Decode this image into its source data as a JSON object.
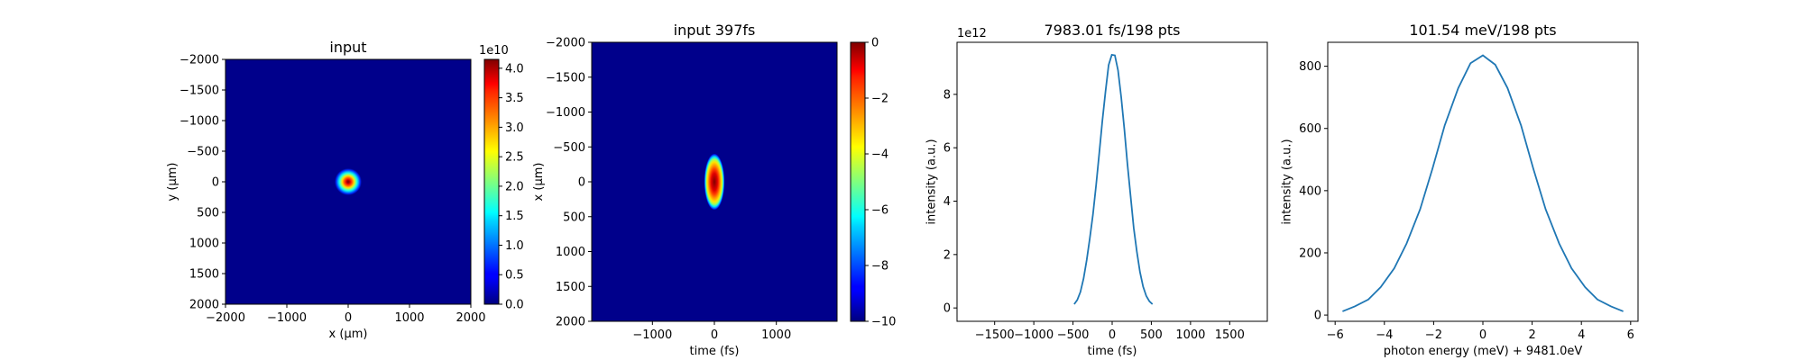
{
  "chart_data": [
    {
      "type": "heatmap",
      "title": "input",
      "xlabel": "x (μm)",
      "ylabel": "y (μm)",
      "xlim": [
        -2000,
        2000
      ],
      "ylim": [
        2000,
        -2000
      ],
      "xticks": [
        "−2000",
        "−1000",
        "0",
        "1000",
        "2000"
      ],
      "yticks": [
        "−2000",
        "−1500",
        "−1000",
        "−500",
        "0",
        "500",
        "1000",
        "1500",
        "2000"
      ],
      "beam": {
        "center": [
          0,
          0
        ],
        "sigma": [
          230,
          230
        ]
      },
      "colorbar": {
        "colormap": "jet",
        "range": [
          0,
          4.15
        ],
        "ticks": [
          "0.0",
          "0.5",
          "1.0",
          "1.5",
          "2.0",
          "2.5",
          "3.0",
          "3.5",
          "4.0"
        ],
        "exponent_label": "1e10"
      }
    },
    {
      "type": "heatmap",
      "title": "input 397fs",
      "xlabel": "time (fs)",
      "ylabel": "x (μm)",
      "xlim": [
        -1980,
        1980
      ],
      "ylim": [
        2000,
        -2000
      ],
      "xticks": [
        "−1000",
        "0",
        "1000"
      ],
      "yticks": [
        "−2000",
        "−1500",
        "−1000",
        "−500",
        "0",
        "500",
        "1000",
        "1500",
        "2000"
      ],
      "beam": {
        "center": [
          0,
          0
        ],
        "sigma": [
          165,
          405
        ]
      },
      "colorbar": {
        "colormap": "jet",
        "range": [
          -10,
          0
        ],
        "ticks": [
          "0",
          "−2",
          "−4",
          "−6",
          "−8",
          "−10"
        ]
      }
    },
    {
      "type": "line",
      "title": "7983.01 fs/198 pts",
      "xlabel": "time (fs)",
      "ylabel": "intensity (a.u.)",
      "exponent_label": "1e12",
      "xlim": [
        -1980,
        1980
      ],
      "ylim": [
        -0.5,
        9.95
      ],
      "xticks": [
        -1500,
        -1000,
        -500,
        0,
        500,
        1000,
        1500
      ],
      "xtick_labels": [
        "−1500",
        "−1000",
        "−500",
        "0",
        "500",
        "1000",
        "1500"
      ],
      "yticks": [
        0,
        2,
        4,
        6,
        8
      ],
      "ytick_labels": [
        "0",
        "2",
        "4",
        "6",
        "8"
      ],
      "series": [
        {
          "color": "#1f77b4",
          "x": [
            -485,
            -445,
            -405,
            -365,
            -325,
            -285,
            -245,
            -205,
            -165,
            -125,
            -85,
            -45,
            -5,
            35,
            75,
            115,
            155,
            195,
            235,
            275,
            315,
            355,
            395,
            435,
            475,
            515
          ],
          "y": [
            0.14,
            0.3,
            0.6,
            1.1,
            1.8,
            2.6,
            3.5,
            4.6,
            5.8,
            7.0,
            8.1,
            9.1,
            9.48,
            9.46,
            8.9,
            7.9,
            6.7,
            5.4,
            4.2,
            3.0,
            2.1,
            1.35,
            0.8,
            0.45,
            0.25,
            0.14
          ]
        }
      ]
    },
    {
      "type": "line",
      "title": "101.54 meV/198 pts",
      "xlabel": "photon energy (meV) + 9481.0eV",
      "ylabel": "intensity (a.u.)",
      "xlim": [
        -6.3,
        6.3
      ],
      "ylim": [
        -20,
        877
      ],
      "xticks": [
        -6,
        -4,
        -2,
        0,
        2,
        4,
        6
      ],
      "xtick_labels": [
        "−6",
        "−4",
        "−2",
        "0",
        "2",
        "4",
        "6"
      ],
      "yticks": [
        0,
        200,
        400,
        600,
        800
      ],
      "ytick_labels": [
        "0",
        "200",
        "400",
        "600",
        "800"
      ],
      "series": [
        {
          "color": "#1f77b4",
          "x": [
            -5.7,
            -5.2,
            -4.65,
            -4.15,
            -3.6,
            -3.1,
            -2.55,
            -2.05,
            -1.55,
            -1.0,
            -0.5,
            0.0,
            0.5,
            1.0,
            1.55,
            2.05,
            2.55,
            3.1,
            3.6,
            4.15,
            4.65,
            5.2,
            5.7
          ],
          "y": [
            12,
            28,
            50,
            90,
            150,
            230,
            340,
            470,
            610,
            730,
            810,
            835,
            805,
            730,
            610,
            470,
            340,
            230,
            150,
            90,
            50,
            28,
            12
          ]
        }
      ]
    }
  ]
}
